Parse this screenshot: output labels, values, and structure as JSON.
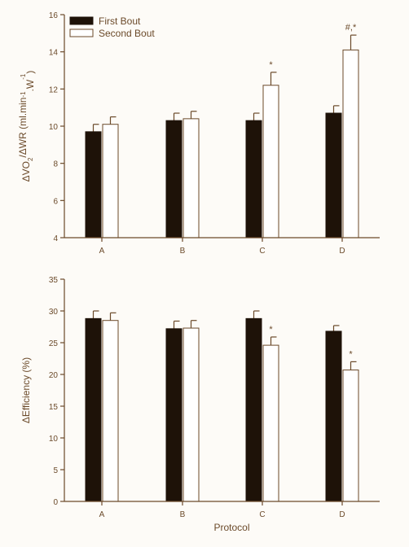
{
  "colors": {
    "ink": "#6b4a2a",
    "first_fill": "#1e1208",
    "second_fill": "#ffffff",
    "background": "#fdfbf7"
  },
  "chart_data": [
    {
      "type": "bar",
      "title": "",
      "xlabel": "",
      "ylabel": "ΔVO2/ΔWR (ml.min⁻¹.W⁻¹)",
      "ylabel_parts": [
        "ΔVO",
        "2",
        "/ΔWR (ml.min",
        "-1",
        ".W",
        "-1",
        ")"
      ],
      "ylim": [
        4,
        16
      ],
      "yticks": [
        4,
        6,
        8,
        10,
        12,
        14,
        16
      ],
      "categories": [
        "A",
        "B",
        "C",
        "D"
      ],
      "legend": {
        "position": "top-left",
        "entries": [
          "First Bout",
          "Second Bout"
        ]
      },
      "grid": false,
      "series": [
        {
          "name": "First Bout",
          "values": [
            9.7,
            10.3,
            10.3,
            10.7
          ],
          "errors": [
            0.4,
            0.4,
            0.4,
            0.4
          ],
          "annotations": [
            "",
            "",
            "",
            ""
          ]
        },
        {
          "name": "Second Bout",
          "values": [
            10.1,
            10.4,
            12.2,
            14.1
          ],
          "errors": [
            0.4,
            0.4,
            0.7,
            0.8
          ],
          "annotations": [
            "",
            "",
            "*",
            "#,*"
          ]
        }
      ]
    },
    {
      "type": "bar",
      "title": "",
      "xlabel": "Protocol",
      "ylabel": "ΔEfficiency (%)",
      "ylim": [
        0,
        35
      ],
      "yticks": [
        0,
        5,
        10,
        15,
        20,
        25,
        30,
        35
      ],
      "categories": [
        "A",
        "B",
        "C",
        "D"
      ],
      "grid": false,
      "series": [
        {
          "name": "First Bout",
          "values": [
            28.8,
            27.2,
            28.8,
            26.8
          ],
          "errors": [
            1.2,
            1.2,
            1.2,
            0.9
          ],
          "annotations": [
            "",
            "",
            "",
            ""
          ]
        },
        {
          "name": "Second Bout",
          "values": [
            28.5,
            27.3,
            24.6,
            20.7
          ],
          "errors": [
            1.2,
            1.2,
            1.3,
            1.3
          ],
          "annotations": [
            "",
            "",
            "*",
            "*"
          ]
        }
      ]
    }
  ]
}
